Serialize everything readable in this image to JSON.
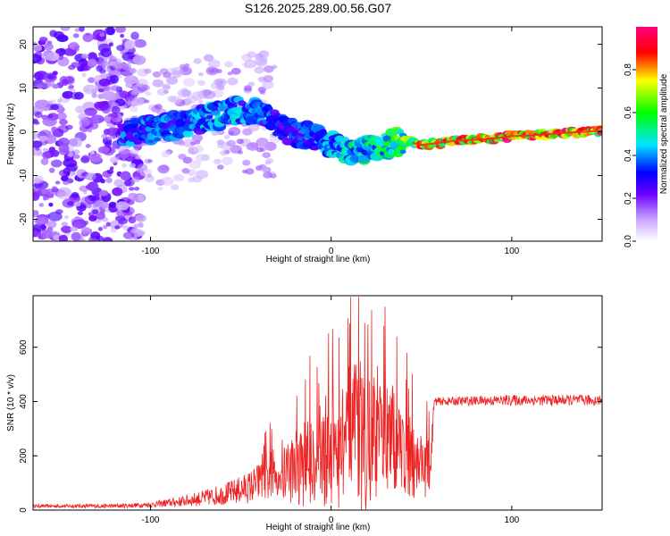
{
  "title": "S126.2025.289.00.56.G07",
  "chart_data": [
    {
      "type": "heatmap",
      "xlabel": "Height of straight line (km)",
      "ylabel": "Frequency (Hz)",
      "xlim": [
        -165,
        150
      ],
      "ylim": [
        -25,
        24
      ],
      "xticks": [
        -100,
        0,
        100
      ],
      "yticks": [
        -20,
        -10,
        0,
        10,
        20
      ],
      "ridge": {
        "x": [
          -110,
          -90,
          -70,
          -50,
          -35,
          -25,
          -10,
          0,
          10,
          20,
          30,
          40,
          50,
          60,
          70,
          80,
          90,
          100,
          110,
          120,
          130,
          140,
          150
        ],
        "freq": [
          0,
          1,
          3,
          5,
          4,
          0,
          -1,
          -3,
          -5,
          -4,
          -3,
          -2,
          -3,
          -2.5,
          -2,
          -1.8,
          -1.5,
          -1,
          -0.8,
          -0.5,
          -0.2,
          0,
          0.3
        ],
        "amplitude": [
          0.4,
          0.4,
          0.45,
          0.45,
          0.4,
          0.35,
          0.4,
          0.45,
          0.5,
          0.55,
          0.6,
          0.65,
          0.85,
          0.9,
          0.9,
          0.92,
          0.9,
          0.93,
          0.95,
          0.95,
          0.97,
          0.97,
          0.95
        ]
      },
      "colorbar": {
        "label": "Normalized spectral amplitude",
        "range": [
          0.0,
          1.0
        ],
        "ticks": [
          "0.0",
          "0.2",
          "0.4",
          "0.6",
          "0.8"
        ],
        "colors": [
          "#ffffff",
          "#8a00ff",
          "#0000ff",
          "#00ffff",
          "#00ff00",
          "#ffff00",
          "#ff0000",
          "#ff0080"
        ]
      }
    },
    {
      "type": "line",
      "xlabel": "Height of straight line (km)",
      "ylabel": "SNR (10 * v/v)",
      "xlim": [
        -165,
        150
      ],
      "ylim": [
        0,
        790
      ],
      "xticks": [
        -100,
        0,
        100
      ],
      "yticks": [
        0,
        200,
        400,
        600
      ],
      "line_color": "#ee2222",
      "series": [
        {
          "name": "SNR",
          "envelope": {
            "x": [
              -165,
              -120,
              -100,
              -85,
              -70,
              -55,
              -45,
              -35,
              -25,
              -15,
              -5,
              5,
              15,
              22,
              30,
              40,
              50,
              55,
              57,
              100,
              150
            ],
            "baseline": [
              15,
              15,
              20,
              30,
              45,
              65,
              85,
              120,
              150,
              180,
              210,
              250,
              270,
              280,
              260,
              230,
              180,
              150,
              400,
              405,
              405
            ],
            "amplitude": [
              6,
              8,
              10,
              18,
              30,
              45,
              60,
              90,
              140,
              170,
              230,
              260,
              290,
              300,
              240,
              200,
              140,
              100,
              15,
              20,
              20
            ]
          }
        }
      ]
    }
  ]
}
